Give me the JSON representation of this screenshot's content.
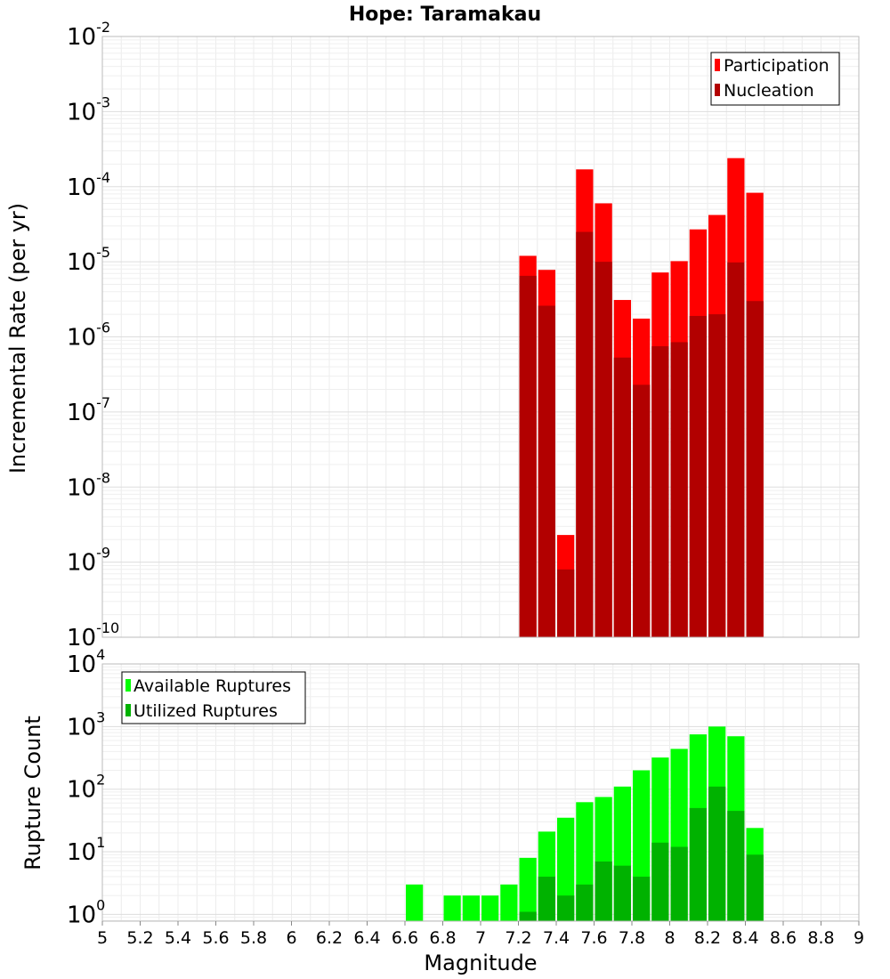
{
  "chart_data": [
    {
      "type": "bar",
      "title": "Hope: Taramakau",
      "ylabel": "Incremental Rate (per yr)",
      "yscale": "log",
      "ylim": [
        1e-10,
        0.01
      ],
      "y_ticks": [
        {
          "mantissa": "10",
          "exp": "-10",
          "value": 1e-10
        },
        {
          "mantissa": "10",
          "exp": "-9",
          "value": 1e-09
        },
        {
          "mantissa": "10",
          "exp": "-8",
          "value": 1e-08
        },
        {
          "mantissa": "10",
          "exp": "-7",
          "value": 1e-07
        },
        {
          "mantissa": "10",
          "exp": "-6",
          "value": 1e-06
        },
        {
          "mantissa": "10",
          "exp": "-5",
          "value": 1e-05
        },
        {
          "mantissa": "10",
          "exp": "-4",
          "value": 0.0001
        },
        {
          "mantissa": "10",
          "exp": "-3",
          "value": 0.001
        },
        {
          "mantissa": "10",
          "exp": "-2",
          "value": 0.01
        }
      ],
      "grid": true,
      "legend_position": "top-right",
      "x": [
        7.25,
        7.35,
        7.45,
        7.55,
        7.65,
        7.75,
        7.85,
        7.95,
        8.05,
        8.15,
        8.25,
        8.35,
        8.45
      ],
      "series": [
        {
          "name": "Participation",
          "color": "#ff0000",
          "values": [
            1.2e-05,
            7.8e-06,
            2.3e-09,
            0.00017,
            6e-05,
            3.1e-06,
            1.75e-06,
            7.2e-06,
            1.02e-05,
            2.7e-05,
            4.2e-05,
            0.00024,
            8.3e-05
          ]
        },
        {
          "name": "Nucleation",
          "color": "#b20000",
          "values": [
            6.5e-06,
            2.6e-06,
            8e-10,
            2.5e-05,
            1e-05,
            5.3e-07,
            2.3e-07,
            7.5e-07,
            8.5e-07,
            1.9e-06,
            2e-06,
            9.8e-06,
            3e-06
          ]
        }
      ]
    },
    {
      "type": "bar",
      "xlabel": "Magnitude",
      "ylabel": "Rupture Count",
      "yscale": "log",
      "ylim": [
        0.78,
        10000
      ],
      "xlim": [
        5,
        9
      ],
      "y_ticks": [
        {
          "mantissa": "10",
          "exp": "0",
          "value": 1
        },
        {
          "mantissa": "10",
          "exp": "1",
          "value": 10
        },
        {
          "mantissa": "10",
          "exp": "2",
          "value": 100
        },
        {
          "mantissa": "10",
          "exp": "3",
          "value": 1000
        },
        {
          "mantissa": "10",
          "exp": "4",
          "value": 10000
        }
      ],
      "x_ticks": [
        "5",
        "5.2",
        "5.4",
        "5.6",
        "5.8",
        "6",
        "6.2",
        "6.4",
        "6.6",
        "6.8",
        "7",
        "7.2",
        "7.4",
        "7.6",
        "7.8",
        "8",
        "8.2",
        "8.4",
        "8.6",
        "8.8",
        "9"
      ],
      "grid": true,
      "legend_position": "top-left",
      "series": [
        {
          "name": "Available Ruptures",
          "color": "#00ff00",
          "x": [
            6.65,
            6.85,
            6.95,
            7.05,
            7.15,
            7.25,
            7.35,
            7.45,
            7.55,
            7.65,
            7.75,
            7.85,
            7.95,
            8.05,
            8.15,
            8.25,
            8.35,
            8.45
          ],
          "values": [
            3,
            2,
            2,
            2,
            3,
            8,
            21,
            35,
            62,
            75,
            110,
            200,
            320,
            440,
            750,
            1000,
            700,
            24
          ]
        },
        {
          "name": "Utilized Ruptures",
          "color": "#00b200",
          "x": [
            7.25,
            7.35,
            7.45,
            7.55,
            7.65,
            7.75,
            7.85,
            7.95,
            8.05,
            8.15,
            8.25,
            8.35,
            8.45
          ],
          "values": [
            1.1,
            4,
            2,
            3,
            7,
            6,
            4,
            14,
            12,
            50,
            110,
            45,
            9
          ]
        }
      ]
    }
  ]
}
